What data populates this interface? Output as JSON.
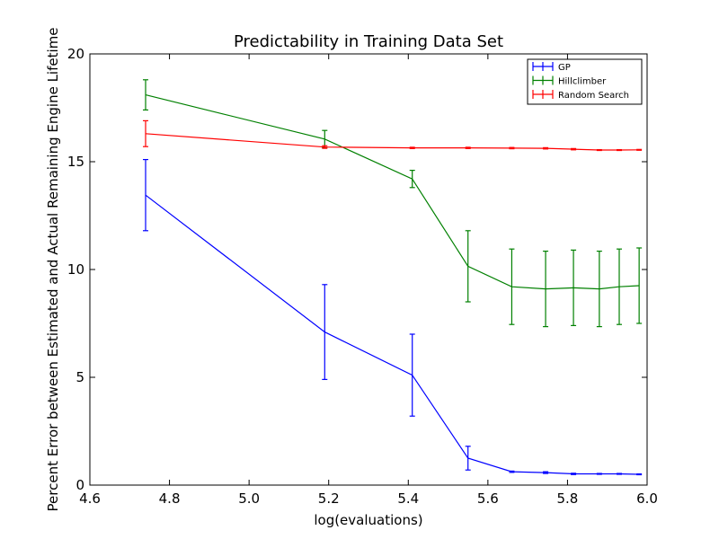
{
  "chart_data": {
    "type": "line",
    "title": "Predictability in Training Data Set",
    "xlabel": "log(evaluations)",
    "ylabel": "Percent Error between Estimated and Actual Remaining Engine Lifetime",
    "xlim": [
      4.6,
      6.0
    ],
    "ylim": [
      0,
      20
    ],
    "xticks": [
      "4.6",
      "4.8",
      "5.0",
      "5.2",
      "5.4",
      "5.6",
      "5.8",
      "6.0"
    ],
    "yticks": [
      "0",
      "5",
      "10",
      "15",
      "20"
    ],
    "grid": false,
    "legend_position": "top-right",
    "series": [
      {
        "name": "GP",
        "color": "#0000ff",
        "x": [
          4.74,
          5.19,
          5.41,
          5.55,
          5.66,
          5.745,
          5.815,
          5.88,
          5.93,
          5.98
        ],
        "y": [
          13.45,
          7.1,
          5.1,
          1.25,
          0.62,
          0.58,
          0.52,
          0.52,
          0.52,
          0.5
        ],
        "err": [
          1.65,
          2.2,
          1.9,
          0.55,
          0.03,
          0.04,
          0.03,
          0.02,
          0.02,
          0.02
        ]
      },
      {
        "name": "Hillclimber",
        "color": "#008000",
        "x": [
          4.74,
          5.19,
          5.41,
          5.55,
          5.66,
          5.745,
          5.815,
          5.88,
          5.93,
          5.98
        ],
        "y": [
          18.1,
          16.05,
          14.2,
          10.15,
          9.2,
          9.1,
          9.15,
          9.1,
          9.2,
          9.25
        ],
        "err": [
          0.7,
          0.4,
          0.4,
          1.65,
          1.75,
          1.75,
          1.75,
          1.75,
          1.75,
          1.75
        ]
      },
      {
        "name": "Random Search",
        "color": "#ff0000",
        "x": [
          4.74,
          5.19,
          5.41,
          5.55,
          5.66,
          5.745,
          5.815,
          5.88,
          5.93,
          5.98
        ],
        "y": [
          16.3,
          15.68,
          15.64,
          15.64,
          15.63,
          15.62,
          15.58,
          15.54,
          15.54,
          15.55
        ],
        "err": [
          0.6,
          0.06,
          0.03,
          0.03,
          0.03,
          0.03,
          0.03,
          0.02,
          0.02,
          0.02
        ]
      }
    ]
  }
}
